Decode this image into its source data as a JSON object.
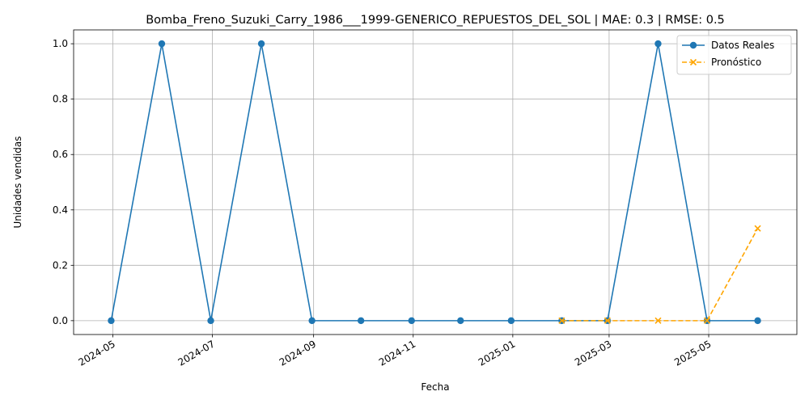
{
  "chart_data": {
    "type": "line",
    "title": "Bomba_Freno_Suzuki_Carry_1986___1999-GENERICO_REPUESTOS_DEL_SOL | MAE: 0.3 | RMSE: 0.5",
    "xlabel": "Fecha",
    "ylabel": "Unidades vendidas",
    "xlim": [
      "2024-04-07",
      "2025-06-24"
    ],
    "ylim": [
      -0.05,
      1.05
    ],
    "x_ticks": [
      "2024-05",
      "2024-07",
      "2024-09",
      "2024-11",
      "2025-01",
      "2025-03",
      "2025-05"
    ],
    "y_ticks": [
      "0.0",
      "0.2",
      "0.4",
      "0.6",
      "0.8",
      "1.0"
    ],
    "grid": true,
    "legend_position": "top-right",
    "series": [
      {
        "name": "Datos Reales",
        "color": "#1f77b4",
        "style": "solid",
        "marker": "circle",
        "x": [
          "2024-04-30",
          "2024-05-31",
          "2024-06-30",
          "2024-07-31",
          "2024-08-31",
          "2024-09-30",
          "2024-10-31",
          "2024-11-30",
          "2024-12-31",
          "2025-01-31",
          "2025-02-28",
          "2025-03-31",
          "2025-04-30",
          "2025-05-31"
        ],
        "values": [
          0,
          1,
          0,
          1,
          0,
          0,
          0,
          0,
          0,
          0,
          0,
          1,
          0,
          0
        ]
      },
      {
        "name": "Pronóstico",
        "color": "#ffa500",
        "style": "dashed",
        "marker": "x",
        "x": [
          "2025-01-31",
          "2025-02-28",
          "2025-03-31",
          "2025-04-30",
          "2025-05-31"
        ],
        "values": [
          0,
          0,
          0,
          0,
          0.333
        ]
      }
    ]
  }
}
